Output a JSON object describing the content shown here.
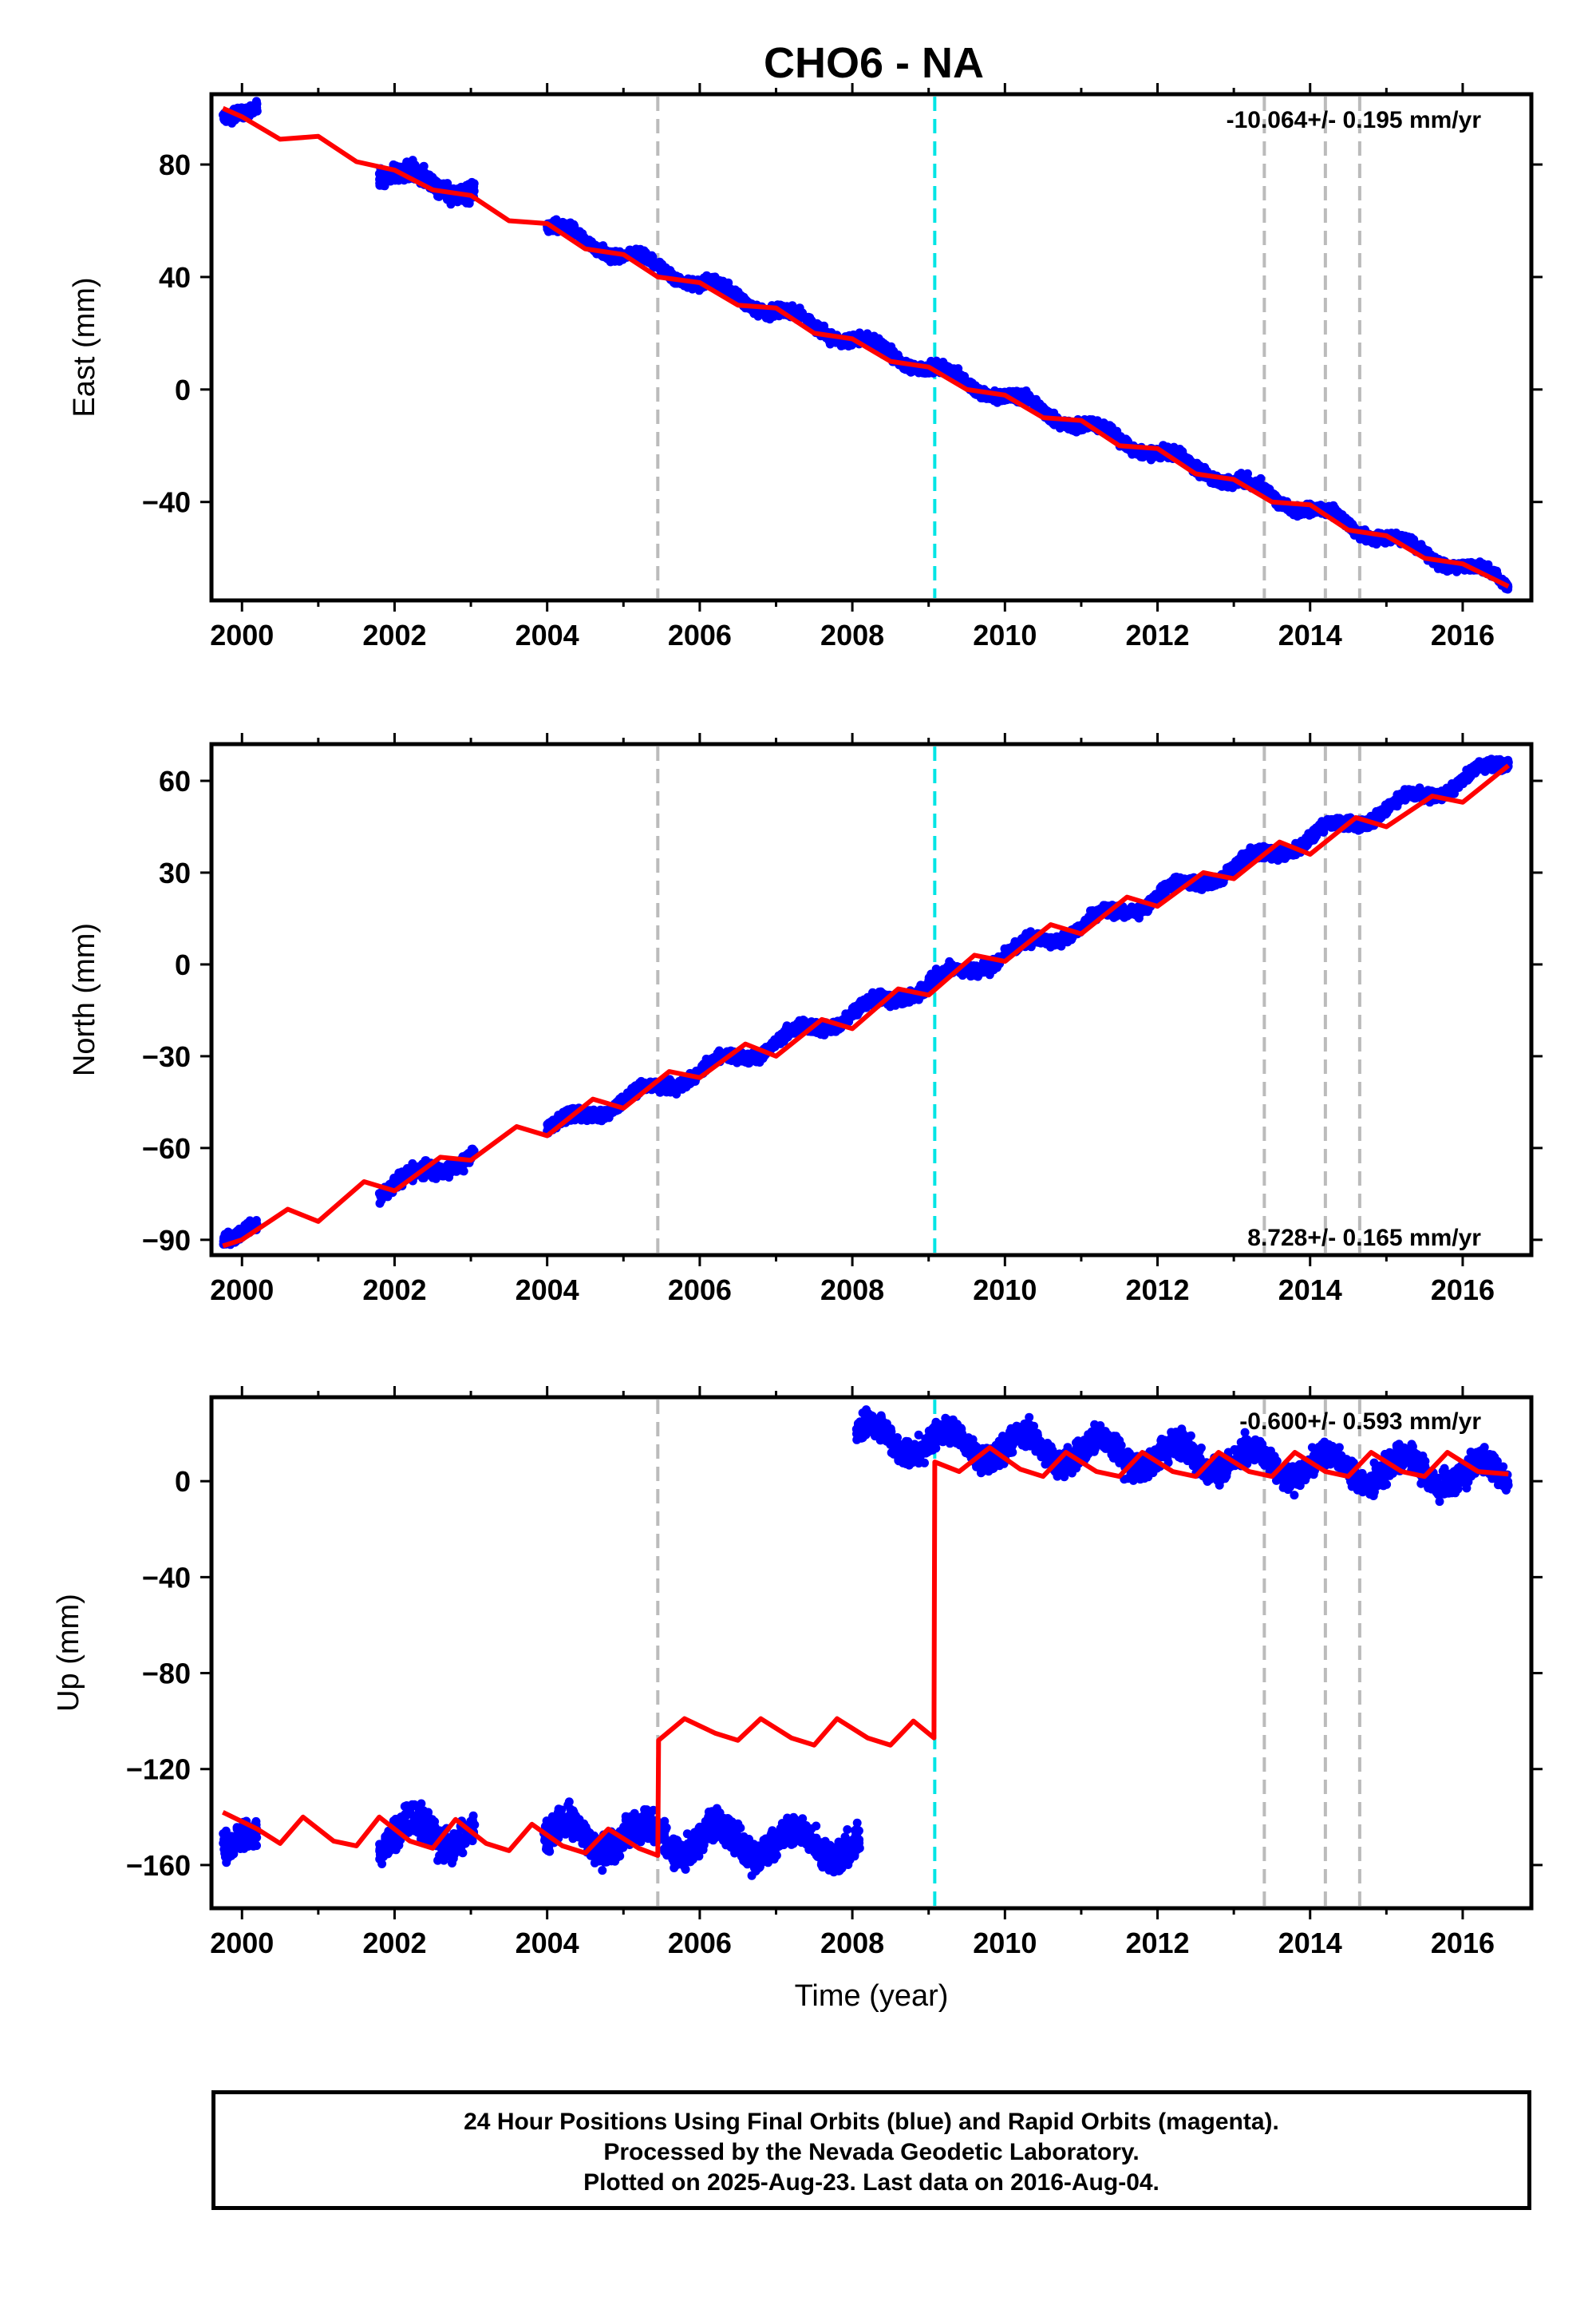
{
  "title": "CHO6 - NA",
  "x_axis_label": "Time (year)",
  "footer": {
    "line1": "24 Hour Positions Using Final Orbits (blue) and Rapid Orbits (magenta).",
    "line2": "Processed by the Nevada Geodetic Laboratory.",
    "line3": "Plotted on 2025-Aug-23. Last data on 2016-Aug-04."
  },
  "colors": {
    "data": "#0000ff",
    "model": "#ff0000",
    "event_gray": "#bbbbbb",
    "event_cyan": "#00e5e5",
    "axes": "#000000"
  },
  "chart_data": [
    {
      "type": "scatter",
      "panel": "east",
      "ylabel": "East (mm)",
      "xlim": [
        1999.6,
        2016.9
      ],
      "ylim": [
        -75,
        105
      ],
      "yticks": [
        -40,
        0,
        40,
        80
      ],
      "xticks": [
        2000,
        2002,
        2004,
        2006,
        2008,
        2010,
        2012,
        2014,
        2016
      ],
      "rate_text": "-10.064+/- 0.195 mm/yr",
      "rate": -10.064,
      "gray_events": [
        2005.45,
        2013.4,
        2014.2,
        2014.65
      ],
      "cyan_events": [
        2009.08
      ],
      "model": {
        "x": [
          1999.75,
          2000.0,
          2000.5,
          2001.0,
          2001.5,
          2002.0,
          2002.5,
          2003.0,
          2003.5,
          2004.0,
          2004.5,
          2005.0,
          2005.45,
          2006.0,
          2006.5,
          2007.0,
          2007.5,
          2008.0,
          2008.5,
          2009.0,
          2009.5,
          2010.0,
          2010.5,
          2011.0,
          2011.5,
          2012.0,
          2012.5,
          2013.0,
          2013.5,
          2014.0,
          2014.5,
          2015.0,
          2015.5,
          2016.0,
          2016.6
        ],
        "y": [
          100,
          97,
          89,
          90,
          81,
          78,
          71,
          69,
          60,
          59,
          50,
          48,
          40,
          38,
          30,
          29,
          20,
          18,
          10,
          8,
          0,
          -2,
          -10,
          -11,
          -20,
          -21,
          -30,
          -32,
          -40,
          -41,
          -50,
          -52,
          -60,
          -62,
          -70
        ]
      },
      "observation_segments": [
        {
          "start": 1999.75,
          "end": 2000.2,
          "y0": 99,
          "y1": 98,
          "noise": 2.0
        },
        {
          "start": 2001.8,
          "end": 2003.05,
          "y0": 78,
          "y1": 70,
          "noise": 3.0
        },
        {
          "start": 2004.0,
          "end": 2016.6,
          "y0": 58,
          "y1": -69,
          "noise": 1.8
        }
      ]
    },
    {
      "type": "scatter",
      "panel": "north",
      "ylabel": "North (mm)",
      "xlim": [
        1999.6,
        2016.9
      ],
      "ylim": [
        -95,
        72
      ],
      "yticks": [
        -90,
        -60,
        -30,
        0,
        30,
        60
      ],
      "xticks": [
        2000,
        2002,
        2004,
        2006,
        2008,
        2010,
        2012,
        2014,
        2016
      ],
      "rate_text": "8.728+/- 0.165 mm/yr",
      "rate": 8.728,
      "gray_events": [
        2005.45,
        2013.4,
        2014.2,
        2014.65
      ],
      "cyan_events": [
        2009.08
      ],
      "model": {
        "x": [
          1999.75,
          2000.0,
          2000.6,
          2001.0,
          2001.6,
          2002.0,
          2002.6,
          2003.0,
          2003.6,
          2004.0,
          2004.6,
          2005.0,
          2005.6,
          2006.0,
          2006.6,
          2007.0,
          2007.6,
          2008.0,
          2008.6,
          2009.0,
          2009.6,
          2010.0,
          2010.6,
          2011.0,
          2011.6,
          2012.0,
          2012.6,
          2013.0,
          2013.6,
          2014.0,
          2014.6,
          2015.0,
          2015.6,
          2016.0,
          2016.6
        ],
        "y": [
          -92,
          -90,
          -80,
          -84,
          -71,
          -74,
          -63,
          -64,
          -53,
          -56,
          -44,
          -47,
          -35,
          -37,
          -26,
          -30,
          -18,
          -21,
          -8,
          -10,
          3,
          1,
          13,
          10,
          22,
          19,
          30,
          28,
          40,
          36,
          48,
          45,
          55,
          53,
          65
        ]
      },
      "observation_segments": [
        {
          "start": 1999.75,
          "end": 2000.2,
          "y0": -88,
          "y1": -87,
          "noise": 2.0
        },
        {
          "start": 2001.8,
          "end": 2003.05,
          "y0": -74,
          "y1": -62,
          "noise": 2.4
        },
        {
          "start": 2004.0,
          "end": 2016.6,
          "y0": -54,
          "y1": 66,
          "noise": 1.8
        }
      ]
    },
    {
      "type": "scatter",
      "panel": "up",
      "ylabel": "Up (mm)",
      "xlim": [
        1999.6,
        2016.9
      ],
      "ylim": [
        -178,
        35
      ],
      "yticks": [
        -160,
        -120,
        -80,
        -40,
        0
      ],
      "xticks": [
        2000,
        2002,
        2004,
        2006,
        2008,
        2010,
        2012,
        2014,
        2016
      ],
      "rate_text": "-0.600+/- 0.593 mm/yr",
      "rate": -0.6,
      "gray_events": [
        2005.45,
        2013.4,
        2014.2,
        2014.65
      ],
      "cyan_events": [
        2009.08
      ],
      "model": {
        "x": [
          1999.75,
          2000.2,
          2000.5,
          2000.8,
          2001.2,
          2001.5,
          2001.8,
          2002.2,
          2002.5,
          2002.8,
          2003.2,
          2003.5,
          2003.8,
          2004.2,
          2004.5,
          2004.8,
          2005.2,
          2005.45,
          2005.46,
          2005.8,
          2006.2,
          2006.5,
          2006.8,
          2007.2,
          2007.5,
          2007.8,
          2008.2,
          2008.5,
          2008.8,
          2009.07,
          2009.08,
          2009.4,
          2009.8,
          2010.2,
          2010.5,
          2010.8,
          2011.2,
          2011.5,
          2011.8,
          2012.2,
          2012.5,
          2012.8,
          2013.2,
          2013.5,
          2013.8,
          2014.2,
          2014.5,
          2014.8,
          2015.2,
          2015.5,
          2015.8,
          2016.2,
          2016.6
        ],
        "y": [
          -138,
          -145,
          -151,
          -140,
          -150,
          -152,
          -140,
          -150,
          -153,
          -141,
          -151,
          -154,
          -143,
          -152,
          -155,
          -145,
          -153,
          -156,
          -108,
          -99,
          -105,
          -108,
          -99,
          -107,
          -110,
          -99,
          -107,
          -110,
          -100,
          -107,
          8,
          4,
          14,
          5,
          2,
          12,
          4,
          2,
          12,
          4,
          2,
          12,
          4,
          2,
          12,
          4,
          2,
          12,
          4,
          2,
          12,
          4,
          3
        ]
      },
      "observation_segments": [
        {
          "start": 1999.75,
          "end": 2000.2,
          "y0": -145,
          "y1": -152,
          "noise": 6.0
        },
        {
          "start": 2001.8,
          "end": 2003.05,
          "y0": -148,
          "y1": -145,
          "noise": 6.0
        },
        {
          "start": 2003.95,
          "end": 2008.1,
          "y0": -147,
          "y1": -152,
          "noise": 6.0
        },
        {
          "start": 2008.05,
          "end": 2016.6,
          "y0": 18,
          "y1": 2,
          "noise": 5.0
        }
      ]
    }
  ]
}
